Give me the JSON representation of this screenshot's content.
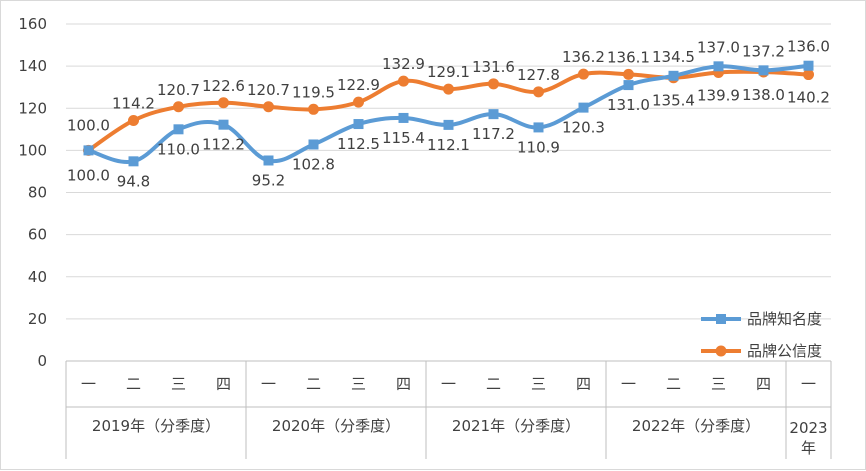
{
  "chart_data": {
    "type": "line",
    "title": "",
    "xlabel": "",
    "ylabel": "",
    "ylim": [
      0,
      160
    ],
    "yticks": [
      0,
      20,
      40,
      60,
      80,
      100,
      120,
      140,
      160
    ],
    "grid": true,
    "legend_position": "bottom-right",
    "categories": [
      "一",
      "二",
      "三",
      "四",
      "一",
      "二",
      "三",
      "四",
      "一",
      "二",
      "三",
      "四",
      "一",
      "二",
      "三",
      "四",
      "一"
    ],
    "groups": [
      {
        "label": "2019年（分季度）",
        "count": 4
      },
      {
        "label": "2020年（分季度）",
        "count": 4
      },
      {
        "label": "2021年（分季度）",
        "count": 4
      },
      {
        "label": "2022年（分季度）",
        "count": 4
      },
      {
        "label": "2023年",
        "count": 1
      }
    ],
    "series": [
      {
        "name": "品牌知名度",
        "color": "#5b9bd5",
        "marker": "square",
        "values": [
          100.0,
          94.8,
          110.0,
          112.2,
          95.2,
          102.8,
          112.5,
          115.4,
          112.1,
          117.2,
          110.9,
          120.3,
          131.0,
          135.4,
          139.9,
          138.0,
          140.2
        ],
        "labels": [
          "100.0",
          "94.8",
          "110.0",
          "112.2",
          "95.2",
          "102.8",
          "112.5",
          "115.4",
          "112.1",
          "117.2",
          "110.9",
          "120.3",
          "131.0",
          "135.4",
          "139.9",
          "138.0",
          "140.2"
        ]
      },
      {
        "name": "品牌公信度",
        "color": "#ed7d31",
        "marker": "circle",
        "values": [
          100.0,
          114.2,
          120.7,
          122.6,
          120.7,
          119.5,
          122.9,
          132.9,
          129.1,
          131.6,
          127.8,
          136.2,
          136.1,
          134.5,
          137.0,
          137.2,
          136.0
        ],
        "labels": [
          "100.0",
          "114.2",
          "120.7",
          "122.6",
          "120.7",
          "119.5",
          "122.9",
          "132.9",
          "129.1",
          "131.6",
          "127.8",
          "136.2",
          "136.1",
          "134.5",
          "137.0",
          "137.2",
          "136.0"
        ]
      }
    ]
  }
}
